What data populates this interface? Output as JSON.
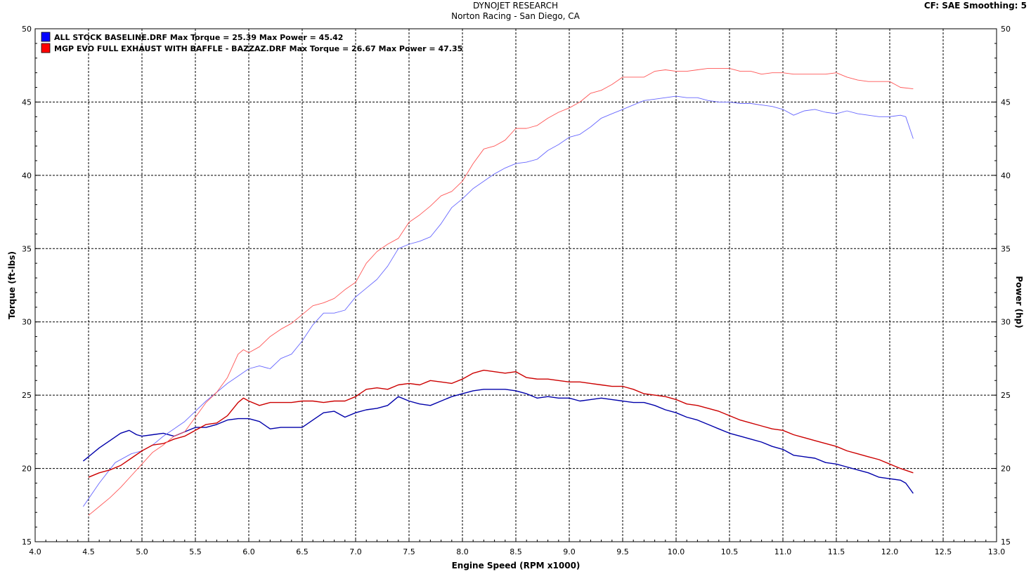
{
  "header": {
    "title": "DYNOJET RESEARCH",
    "subtitle": "Norton Racing - San Diego, CA",
    "cf_info": "CF: SAE  Smoothing: 5"
  },
  "chart_data": {
    "type": "line",
    "xlabel": "Engine Speed (RPM x1000)",
    "ylabel_left": "Torque (ft-lbs)",
    "ylabel_right": "Power (hp)",
    "xlim": [
      4.0,
      13.0
    ],
    "ylim": [
      15,
      50
    ],
    "x_ticks": [
      "4.0",
      "4.5",
      "5.0",
      "5.5",
      "6.0",
      "6.5",
      "7.0",
      "7.5",
      "8.0",
      "8.5",
      "9.0",
      "9.5",
      "10.0",
      "10.5",
      "11.0",
      "11.5",
      "12.0",
      "12.5",
      "13.0"
    ],
    "y_ticks": [
      "15",
      "20",
      "25",
      "30",
      "35",
      "40",
      "45",
      "50"
    ],
    "grid": true,
    "legend_position": "top-left",
    "legend": [
      {
        "text": "ALL STOCK BASELINE.DRF Max Torque = 25.39 Max Power = 45.42",
        "color": "#0000ff"
      },
      {
        "text": "MGP EVO FULL EXHAUST WITH BAFFLE - BAZZAZ.DRF Max Torque = 26.67 Max Power = 47.35",
        "color": "#ff0000"
      }
    ],
    "series": [
      {
        "run": "ALL STOCK BASELINE.DRF",
        "measure": "torque",
        "color": "#0000aa",
        "width": 1.4,
        "x": [
          4.45,
          4.6,
          4.7,
          4.8,
          4.88,
          4.95,
          5.0,
          5.1,
          5.2,
          5.3,
          5.4,
          5.5,
          5.6,
          5.7,
          5.8,
          5.9,
          6.0,
          6.1,
          6.2,
          6.3,
          6.4,
          6.5,
          6.6,
          6.7,
          6.8,
          6.9,
          7.0,
          7.1,
          7.2,
          7.3,
          7.4,
          7.5,
          7.6,
          7.7,
          7.8,
          7.9,
          8.0,
          8.1,
          8.2,
          8.3,
          8.4,
          8.5,
          8.6,
          8.7,
          8.8,
          8.9,
          9.0,
          9.1,
          9.2,
          9.3,
          9.4,
          9.5,
          9.6,
          9.7,
          9.8,
          9.9,
          10.0,
          10.1,
          10.2,
          10.3,
          10.4,
          10.5,
          10.6,
          10.7,
          10.8,
          10.9,
          11.0,
          11.1,
          11.2,
          11.3,
          11.4,
          11.5,
          11.6,
          11.7,
          11.8,
          11.9,
          12.0,
          12.1,
          12.15,
          12.22
        ],
        "y": [
          20.5,
          21.4,
          21.9,
          22.4,
          22.6,
          22.3,
          22.2,
          22.3,
          22.4,
          22.2,
          22.5,
          22.8,
          22.8,
          23.0,
          23.3,
          23.4,
          23.4,
          23.2,
          22.7,
          22.8,
          22.8,
          22.8,
          23.3,
          23.8,
          23.9,
          23.5,
          23.8,
          24.0,
          24.1,
          24.3,
          24.9,
          24.6,
          24.4,
          24.3,
          24.6,
          24.9,
          25.1,
          25.3,
          25.4,
          25.4,
          25.4,
          25.3,
          25.1,
          24.8,
          24.9,
          24.8,
          24.8,
          24.6,
          24.7,
          24.8,
          24.7,
          24.6,
          24.5,
          24.5,
          24.3,
          24.0,
          23.8,
          23.5,
          23.3,
          23.0,
          22.7,
          22.4,
          22.2,
          22.0,
          21.8,
          21.5,
          21.3,
          20.9,
          20.8,
          20.7,
          20.4,
          20.3,
          20.1,
          19.9,
          19.7,
          19.4,
          19.3,
          19.2,
          19.0,
          18.3
        ]
      },
      {
        "run": "ALL STOCK BASELINE.DRF",
        "measure": "power",
        "color": "#6666ff",
        "width": 0.9,
        "x": [
          4.45,
          4.6,
          4.75,
          4.9,
          5.0,
          5.1,
          5.2,
          5.3,
          5.4,
          5.5,
          5.6,
          5.7,
          5.8,
          5.9,
          6.0,
          6.1,
          6.2,
          6.3,
          6.4,
          6.5,
          6.6,
          6.7,
          6.8,
          6.9,
          7.0,
          7.1,
          7.2,
          7.3,
          7.4,
          7.5,
          7.6,
          7.7,
          7.8,
          7.9,
          8.0,
          8.1,
          8.2,
          8.3,
          8.4,
          8.5,
          8.6,
          8.7,
          8.8,
          8.9,
          9.0,
          9.1,
          9.2,
          9.3,
          9.4,
          9.5,
          9.6,
          9.7,
          9.8,
          9.9,
          10.0,
          10.1,
          10.2,
          10.3,
          10.4,
          10.5,
          10.6,
          10.7,
          10.8,
          10.9,
          11.0,
          11.1,
          11.2,
          11.3,
          11.4,
          11.5,
          11.6,
          11.7,
          11.8,
          11.9,
          12.0,
          12.1,
          12.15,
          12.22
        ],
        "y": [
          17.4,
          19.0,
          20.4,
          21.0,
          21.2,
          21.6,
          22.2,
          22.7,
          23.2,
          23.9,
          24.6,
          25.2,
          25.8,
          26.3,
          26.8,
          27.0,
          26.8,
          27.5,
          27.8,
          28.7,
          29.8,
          30.6,
          30.6,
          30.8,
          31.7,
          32.3,
          32.9,
          33.8,
          35.0,
          35.3,
          35.5,
          35.8,
          36.7,
          37.8,
          38.4,
          39.1,
          39.6,
          40.1,
          40.5,
          40.8,
          40.9,
          41.1,
          41.7,
          42.1,
          42.6,
          42.8,
          43.3,
          43.9,
          44.2,
          44.5,
          44.8,
          45.1,
          45.2,
          45.3,
          45.4,
          45.3,
          45.3,
          45.1,
          45.0,
          45.0,
          44.9,
          44.9,
          44.8,
          44.7,
          44.5,
          44.1,
          44.4,
          44.5,
          44.3,
          44.2,
          44.4,
          44.2,
          44.1,
          44.0,
          44.0,
          44.1,
          44.0,
          42.5
        ]
      },
      {
        "run": "MGP EVO FULL EXHAUST WITH BAFFLE - BAZZAZ.DRF",
        "measure": "torque",
        "color": "#cc0000",
        "width": 1.4,
        "x": [
          4.5,
          4.6,
          4.7,
          4.8,
          4.9,
          5.0,
          5.1,
          5.2,
          5.3,
          5.4,
          5.5,
          5.6,
          5.7,
          5.8,
          5.9,
          5.95,
          6.0,
          6.1,
          6.2,
          6.3,
          6.4,
          6.5,
          6.6,
          6.7,
          6.8,
          6.9,
          7.0,
          7.1,
          7.2,
          7.3,
          7.4,
          7.5,
          7.6,
          7.7,
          7.8,
          7.9,
          8.0,
          8.1,
          8.2,
          8.3,
          8.4,
          8.5,
          8.6,
          8.7,
          8.8,
          8.9,
          9.0,
          9.1,
          9.2,
          9.3,
          9.4,
          9.5,
          9.6,
          9.7,
          9.8,
          9.9,
          10.0,
          10.1,
          10.2,
          10.3,
          10.4,
          10.5,
          10.6,
          10.7,
          10.8,
          10.9,
          11.0,
          11.1,
          11.2,
          11.3,
          11.4,
          11.5,
          11.6,
          11.7,
          11.8,
          11.9,
          12.0,
          12.1,
          12.22
        ],
        "y": [
          19.4,
          19.7,
          19.9,
          20.2,
          20.7,
          21.2,
          21.6,
          21.7,
          22.0,
          22.2,
          22.6,
          23.0,
          23.1,
          23.6,
          24.5,
          24.8,
          24.6,
          24.3,
          24.5,
          24.5,
          24.5,
          24.6,
          24.6,
          24.5,
          24.6,
          24.6,
          24.9,
          25.4,
          25.5,
          25.4,
          25.7,
          25.8,
          25.7,
          26.0,
          25.9,
          25.8,
          26.1,
          26.5,
          26.7,
          26.6,
          26.5,
          26.6,
          26.2,
          26.1,
          26.1,
          26.0,
          25.9,
          25.9,
          25.8,
          25.7,
          25.6,
          25.6,
          25.4,
          25.1,
          25.0,
          24.9,
          24.7,
          24.4,
          24.3,
          24.1,
          23.9,
          23.6,
          23.3,
          23.1,
          22.9,
          22.7,
          22.6,
          22.3,
          22.1,
          21.9,
          21.7,
          21.5,
          21.2,
          21.0,
          20.8,
          20.6,
          20.3,
          20.0,
          19.7
        ]
      },
      {
        "run": "MGP EVO FULL EXHAUST WITH BAFFLE - BAZZAZ.DRF",
        "measure": "power",
        "color": "#ff5555",
        "width": 0.9,
        "x": [
          4.5,
          4.6,
          4.7,
          4.8,
          4.9,
          5.0,
          5.1,
          5.2,
          5.3,
          5.4,
          5.5,
          5.6,
          5.7,
          5.8,
          5.9,
          5.95,
          6.0,
          6.1,
          6.2,
          6.3,
          6.4,
          6.5,
          6.6,
          6.7,
          6.8,
          6.9,
          7.0,
          7.1,
          7.2,
          7.3,
          7.4,
          7.5,
          7.6,
          7.7,
          7.8,
          7.9,
          8.0,
          8.1,
          8.2,
          8.3,
          8.4,
          8.5,
          8.6,
          8.7,
          8.8,
          8.9,
          9.0,
          9.1,
          9.2,
          9.3,
          9.4,
          9.5,
          9.6,
          9.7,
          9.8,
          9.9,
          10.0,
          10.1,
          10.2,
          10.3,
          10.4,
          10.5,
          10.6,
          10.7,
          10.8,
          10.9,
          11.0,
          11.1,
          11.2,
          11.3,
          11.4,
          11.5,
          11.6,
          11.7,
          11.8,
          11.9,
          12.0,
          12.1,
          12.22
        ],
        "y": [
          16.8,
          17.4,
          18.0,
          18.7,
          19.5,
          20.3,
          21.1,
          21.6,
          22.2,
          22.5,
          23.5,
          24.5,
          25.2,
          26.2,
          27.8,
          28.1,
          27.9,
          28.3,
          29.0,
          29.5,
          29.9,
          30.5,
          31.1,
          31.3,
          31.6,
          32.2,
          32.7,
          34.0,
          34.8,
          35.3,
          35.7,
          36.8,
          37.3,
          37.9,
          38.6,
          38.9,
          39.6,
          40.8,
          41.8,
          42.0,
          42.4,
          43.2,
          43.2,
          43.4,
          43.9,
          44.3,
          44.6,
          45.0,
          45.6,
          45.8,
          46.2,
          46.7,
          46.7,
          46.7,
          47.1,
          47.2,
          47.1,
          47.1,
          47.2,
          47.3,
          47.3,
          47.3,
          47.1,
          47.1,
          46.9,
          47.0,
          47.0,
          46.9,
          46.9,
          46.9,
          46.9,
          47.0,
          46.7,
          46.5,
          46.4,
          46.4,
          46.4,
          46.0,
          45.9
        ]
      }
    ]
  }
}
